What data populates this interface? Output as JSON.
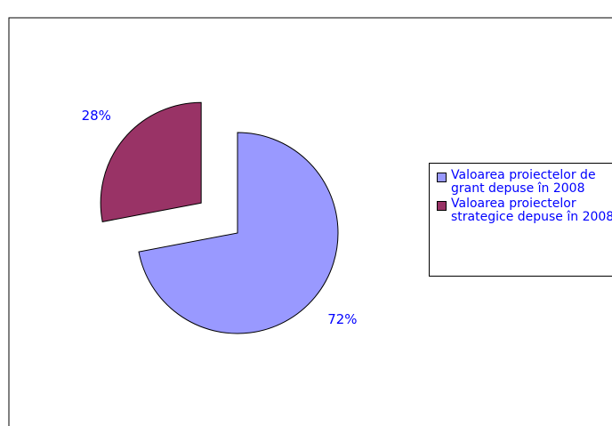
{
  "chart_data": {
    "type": "pie",
    "categories": [
      "Valoarea proiectelor de grant depuse în 2008",
      "Valoarea proiectelor strategice depuse în 2008"
    ],
    "values": [
      72,
      28
    ],
    "value_labels": [
      "72%",
      "28%"
    ],
    "colors": [
      "#9999ff",
      "#993366"
    ],
    "exploded": [
      false,
      true
    ],
    "legend": "right"
  }
}
